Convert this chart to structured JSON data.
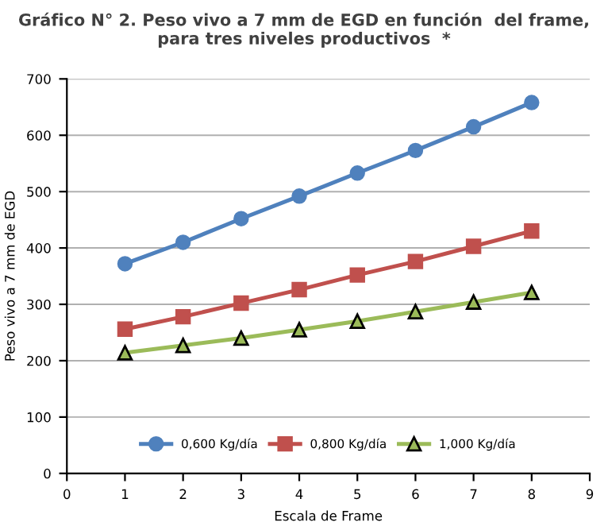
{
  "chart_data": {
    "type": "line",
    "title": "Gráfico N° 2. Peso vivo a 7 mm de EGD en función  del frame,\npara tres niveles productivos  *",
    "xlabel": "Escala de Frame",
    "ylabel": "Peso vivo a 7 mm de EGD",
    "x": [
      1,
      2,
      3,
      4,
      5,
      6,
      7,
      8
    ],
    "series": [
      {
        "name": "0,600 Kg/día",
        "color": "#4f81bd",
        "marker": "circle",
        "values": [
          372,
          410,
          452,
          492,
          533,
          573,
          615,
          658
        ]
      },
      {
        "name": "0,800 Kg/día",
        "color": "#c0504d",
        "marker": "square",
        "values": [
          256,
          278,
          302,
          326,
          352,
          376,
          403,
          430
        ]
      },
      {
        "name": "1,000 Kg/día",
        "color": "#9bbb59",
        "marker": "triangle",
        "values": [
          214,
          227,
          240,
          255,
          270,
          287,
          304,
          321
        ]
      }
    ],
    "xlim": [
      0,
      9
    ],
    "xticks": [
      0,
      1,
      2,
      3,
      4,
      5,
      6,
      7,
      8,
      9
    ],
    "ylim": [
      0,
      700
    ],
    "yticks": [
      0,
      100,
      200,
      300,
      400,
      500,
      600,
      700
    ],
    "grid": "y",
    "legend": "bottom"
  }
}
